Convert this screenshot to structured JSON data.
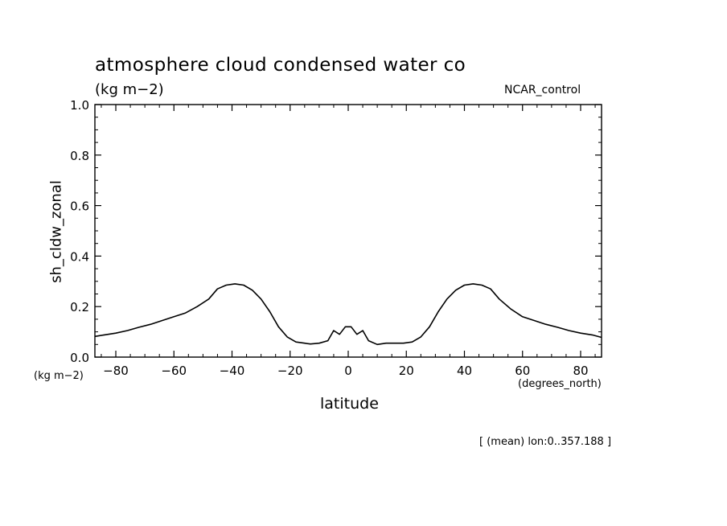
{
  "chart_data": {
    "type": "line",
    "title": "atmosphere cloud condensed water co",
    "units_label": "(kg m−2)",
    "run_label": "NCAR_control",
    "ylabel": "sh_cldw_zonal",
    "y_units": "(kg m−2)",
    "xlabel": "latitude",
    "x_units": "(degrees_north)",
    "footnote": "[ (mean) lon:0..357.188 ]",
    "xlim": [
      -87.2,
      87.2
    ],
    "ylim": [
      0,
      1.0
    ],
    "xticks": [
      -80,
      -60,
      -40,
      -20,
      0,
      20,
      40,
      60,
      80
    ],
    "xtick_labels": [
      "−80",
      "−60",
      "−40",
      "−20",
      "0",
      "20",
      "40",
      "60",
      "80"
    ],
    "yticks": [
      0.0,
      0.2,
      0.4,
      0.6,
      0.8,
      1.0
    ],
    "ytick_labels": [
      "0.0",
      "0.2",
      "0.4",
      "0.6",
      "0.8",
      "1.0"
    ],
    "grid": false,
    "series": [
      {
        "name": "sh_cldw_zonal",
        "x": [
          -87.2,
          -84,
          -80,
          -76,
          -72,
          -68,
          -64,
          -60,
          -56,
          -52,
          -48,
          -45,
          -42,
          -39,
          -36,
          -33,
          -30,
          -27,
          -24,
          -21,
          -18,
          -15,
          -13,
          -10,
          -7,
          -5,
          -3,
          -1,
          1,
          3,
          5,
          7,
          10,
          13,
          16,
          19,
          22,
          25,
          28,
          31,
          34,
          37,
          40,
          43,
          46,
          49,
          52,
          56,
          60,
          64,
          68,
          72,
          76,
          80,
          84,
          87.2
        ],
        "y": [
          0.082,
          0.088,
          0.095,
          0.105,
          0.118,
          0.13,
          0.145,
          0.16,
          0.175,
          0.2,
          0.23,
          0.27,
          0.285,
          0.29,
          0.285,
          0.265,
          0.23,
          0.18,
          0.12,
          0.08,
          0.06,
          0.055,
          0.052,
          0.055,
          0.065,
          0.105,
          0.09,
          0.12,
          0.12,
          0.09,
          0.105,
          0.065,
          0.05,
          0.055,
          0.055,
          0.055,
          0.06,
          0.08,
          0.12,
          0.18,
          0.23,
          0.265,
          0.285,
          0.29,
          0.285,
          0.27,
          0.23,
          0.19,
          0.16,
          0.145,
          0.13,
          0.118,
          0.105,
          0.095,
          0.088,
          0.078
        ]
      }
    ]
  }
}
